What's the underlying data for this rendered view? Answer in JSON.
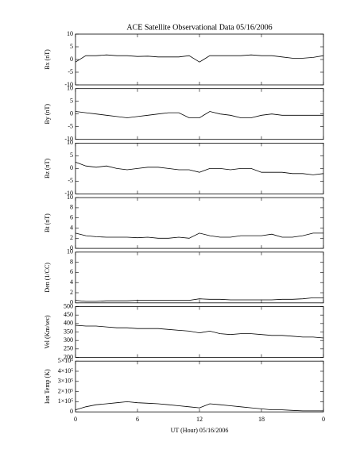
{
  "title": "ACE Satellite Observational Data   05/16/2006",
  "xlabel": "UT (Hour)   05/16/2006",
  "x": [
    0,
    1,
    2,
    3,
    4,
    5,
    6,
    7,
    8,
    9,
    10,
    11,
    12,
    13,
    14,
    15,
    16,
    17,
    18,
    19,
    20,
    21,
    22,
    23,
    24
  ],
  "xlim": [
    0,
    24
  ],
  "xticks": [
    0,
    6,
    12,
    18,
    {
      "value": 24,
      "label": "0"
    }
  ],
  "chart_data": [
    {
      "type": "line",
      "ylabel": "Bx (nT)",
      "ylim": [
        -10,
        10
      ],
      "yticks": [
        -10,
        -5,
        0,
        5,
        10
      ],
      "values": [
        -1,
        1.5,
        1.5,
        1.8,
        1.5,
        1.5,
        1.2,
        1.3,
        1,
        1,
        1,
        1.5,
        -1,
        1.5,
        1.5,
        1.5,
        1.5,
        1.8,
        1.5,
        1.5,
        1,
        0.5,
        0.5,
        0.8,
        1.5
      ]
    },
    {
      "type": "line",
      "ylabel": "By (nT)",
      "ylim": [
        -10,
        10
      ],
      "yticks": [
        -10,
        -5,
        0,
        5,
        10
      ],
      "values": [
        1,
        0.5,
        0,
        -0.5,
        -1,
        -1.5,
        -1,
        -0.5,
        0,
        0.5,
        0.5,
        -1.5,
        -1.5,
        1,
        0,
        -0.5,
        -1.5,
        -1.5,
        -0.5,
        0,
        -0.5,
        -0.5,
        -0.5,
        -0.5,
        -0.5
      ]
    },
    {
      "type": "line",
      "ylabel": "Bz (nT)",
      "ylim": [
        -10,
        10
      ],
      "yticks": [
        -10,
        -5,
        0,
        5,
        10
      ],
      "values": [
        2.5,
        1,
        0.5,
        1,
        0,
        -0.5,
        0,
        0.5,
        0.5,
        0,
        -0.5,
        -0.5,
        -1.5,
        0,
        0,
        -0.5,
        0,
        0,
        -1.5,
        -1.5,
        -1.5,
        -2,
        -2,
        -2.5,
        -2
      ]
    },
    {
      "type": "line",
      "ylabel": "Bt (nT)",
      "ylim": [
        0,
        10
      ],
      "yticks": [
        0,
        2,
        4,
        6,
        8,
        10
      ],
      "values": [
        3,
        2.5,
        2.3,
        2.2,
        2.2,
        2.2,
        2.1,
        2.2,
        2,
        2,
        2.2,
        2,
        3,
        2.5,
        2.2,
        2.2,
        2.5,
        2.5,
        2.5,
        2.8,
        2.2,
        2.2,
        2.5,
        3,
        3
      ]
    },
    {
      "type": "line",
      "ylabel": "Den (1/CC)",
      "ylim": [
        0,
        10
      ],
      "yticks": [
        0,
        2,
        4,
        6,
        8,
        10
      ],
      "values": [
        0.5,
        0.3,
        0.3,
        0.4,
        0.4,
        0.4,
        0.5,
        0.5,
        0.5,
        0.5,
        0.5,
        0.5,
        0.8,
        0.7,
        0.7,
        0.6,
        0.6,
        0.6,
        0.6,
        0.6,
        0.7,
        0.7,
        0.8,
        1,
        1
      ]
    },
    {
      "type": "line",
      "ylabel": "Vel (Km/sec)",
      "ylim": [
        200,
        500
      ],
      "yticks": [
        200,
        250,
        300,
        350,
        400,
        450,
        500
      ],
      "values": [
        390,
        385,
        385,
        380,
        375,
        375,
        370,
        370,
        370,
        365,
        360,
        355,
        345,
        355,
        340,
        335,
        340,
        340,
        335,
        330,
        330,
        325,
        320,
        320,
        315
      ]
    },
    {
      "type": "line",
      "ylabel": "Ion Temp (K)",
      "ylim": [
        0,
        500000
      ],
      "yticks": [
        0,
        {
          "value": 100000,
          "label": "1×10⁵"
        },
        {
          "value": 200000,
          "label": "2×10⁵"
        },
        {
          "value": 300000,
          "label": "3×10⁵"
        },
        {
          "value": 400000,
          "label": "4×10⁵"
        },
        {
          "value": 500000,
          "label": "5×10⁵"
        }
      ],
      "values": [
        20000,
        50000,
        70000,
        80000,
        90000,
        100000,
        90000,
        85000,
        80000,
        70000,
        60000,
        50000,
        40000,
        80000,
        70000,
        60000,
        50000,
        40000,
        30000,
        20000,
        20000,
        15000,
        10000,
        10000,
        10000
      ]
    }
  ]
}
